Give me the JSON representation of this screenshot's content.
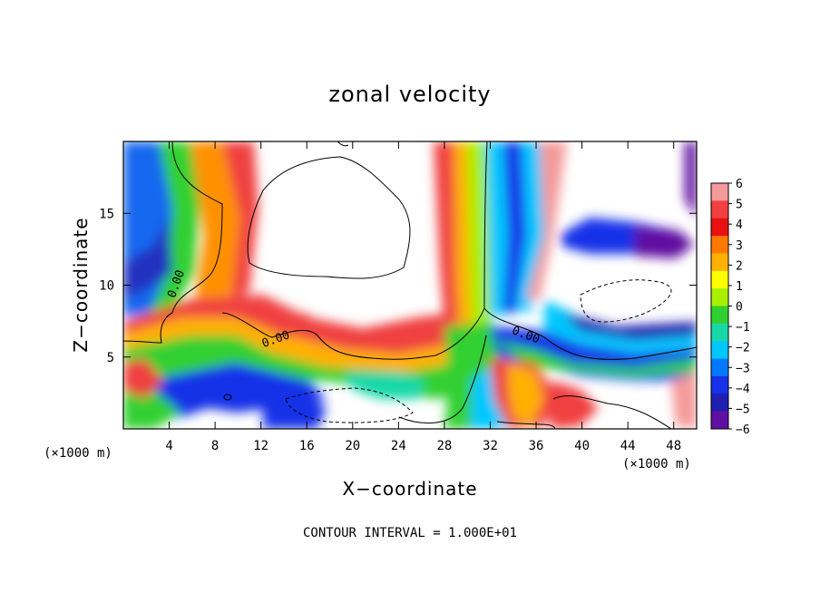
{
  "chart_data": {
    "type": "heatmap",
    "title": "zonal velocity",
    "xlabel": "X−coordinate",
    "ylabel": "Z−coordinate",
    "x_unit_left": "(×1000 m)",
    "x_unit_right": "(×1000 m)",
    "xlim": [
      0,
      50
    ],
    "ylim": [
      0,
      20
    ],
    "x_ticks": [
      4,
      8,
      12,
      16,
      20,
      24,
      28,
      32,
      36,
      40,
      44,
      48
    ],
    "x_tick_labels": [
      "4",
      "8",
      "12",
      "16",
      "20",
      "24",
      "28",
      "32",
      "36",
      "40",
      "44",
      "48"
    ],
    "y_ticks": [
      5,
      10,
      15
    ],
    "y_tick_labels": [
      "5",
      "10",
      "15"
    ],
    "colorbar": {
      "min": -6,
      "max": 6,
      "ticks": [
        6,
        5,
        4,
        3,
        2,
        1,
        0,
        -1,
        -2,
        -3,
        -4,
        -5,
        -6
      ],
      "tick_labels": [
        "6",
        "5",
        "4",
        "3",
        "2",
        "1",
        "0",
        "−1",
        "−2",
        "−3",
        "−4",
        "−5",
        "−6"
      ],
      "colors": [
        "#f49a9a",
        "#f04040",
        "#e81010",
        "#ff7800",
        "#ffb000",
        "#ffff00",
        "#a8f000",
        "#30d030",
        "#18d8a8",
        "#00c8ff",
        "#0078ff",
        "#1830e8",
        "#2020b0",
        "#6010a0"
      ]
    },
    "contour_labels": [
      {
        "text": "0.00",
        "x": 4.9,
        "z": 10.0
      },
      {
        "text": "0.00",
        "x": 13.4,
        "z": 6.0
      },
      {
        "text": "0.00",
        "x": 35.0,
        "z": 6.3
      }
    ],
    "footnote": "CONTOUR INTERVAL = 1.000E+01"
  }
}
